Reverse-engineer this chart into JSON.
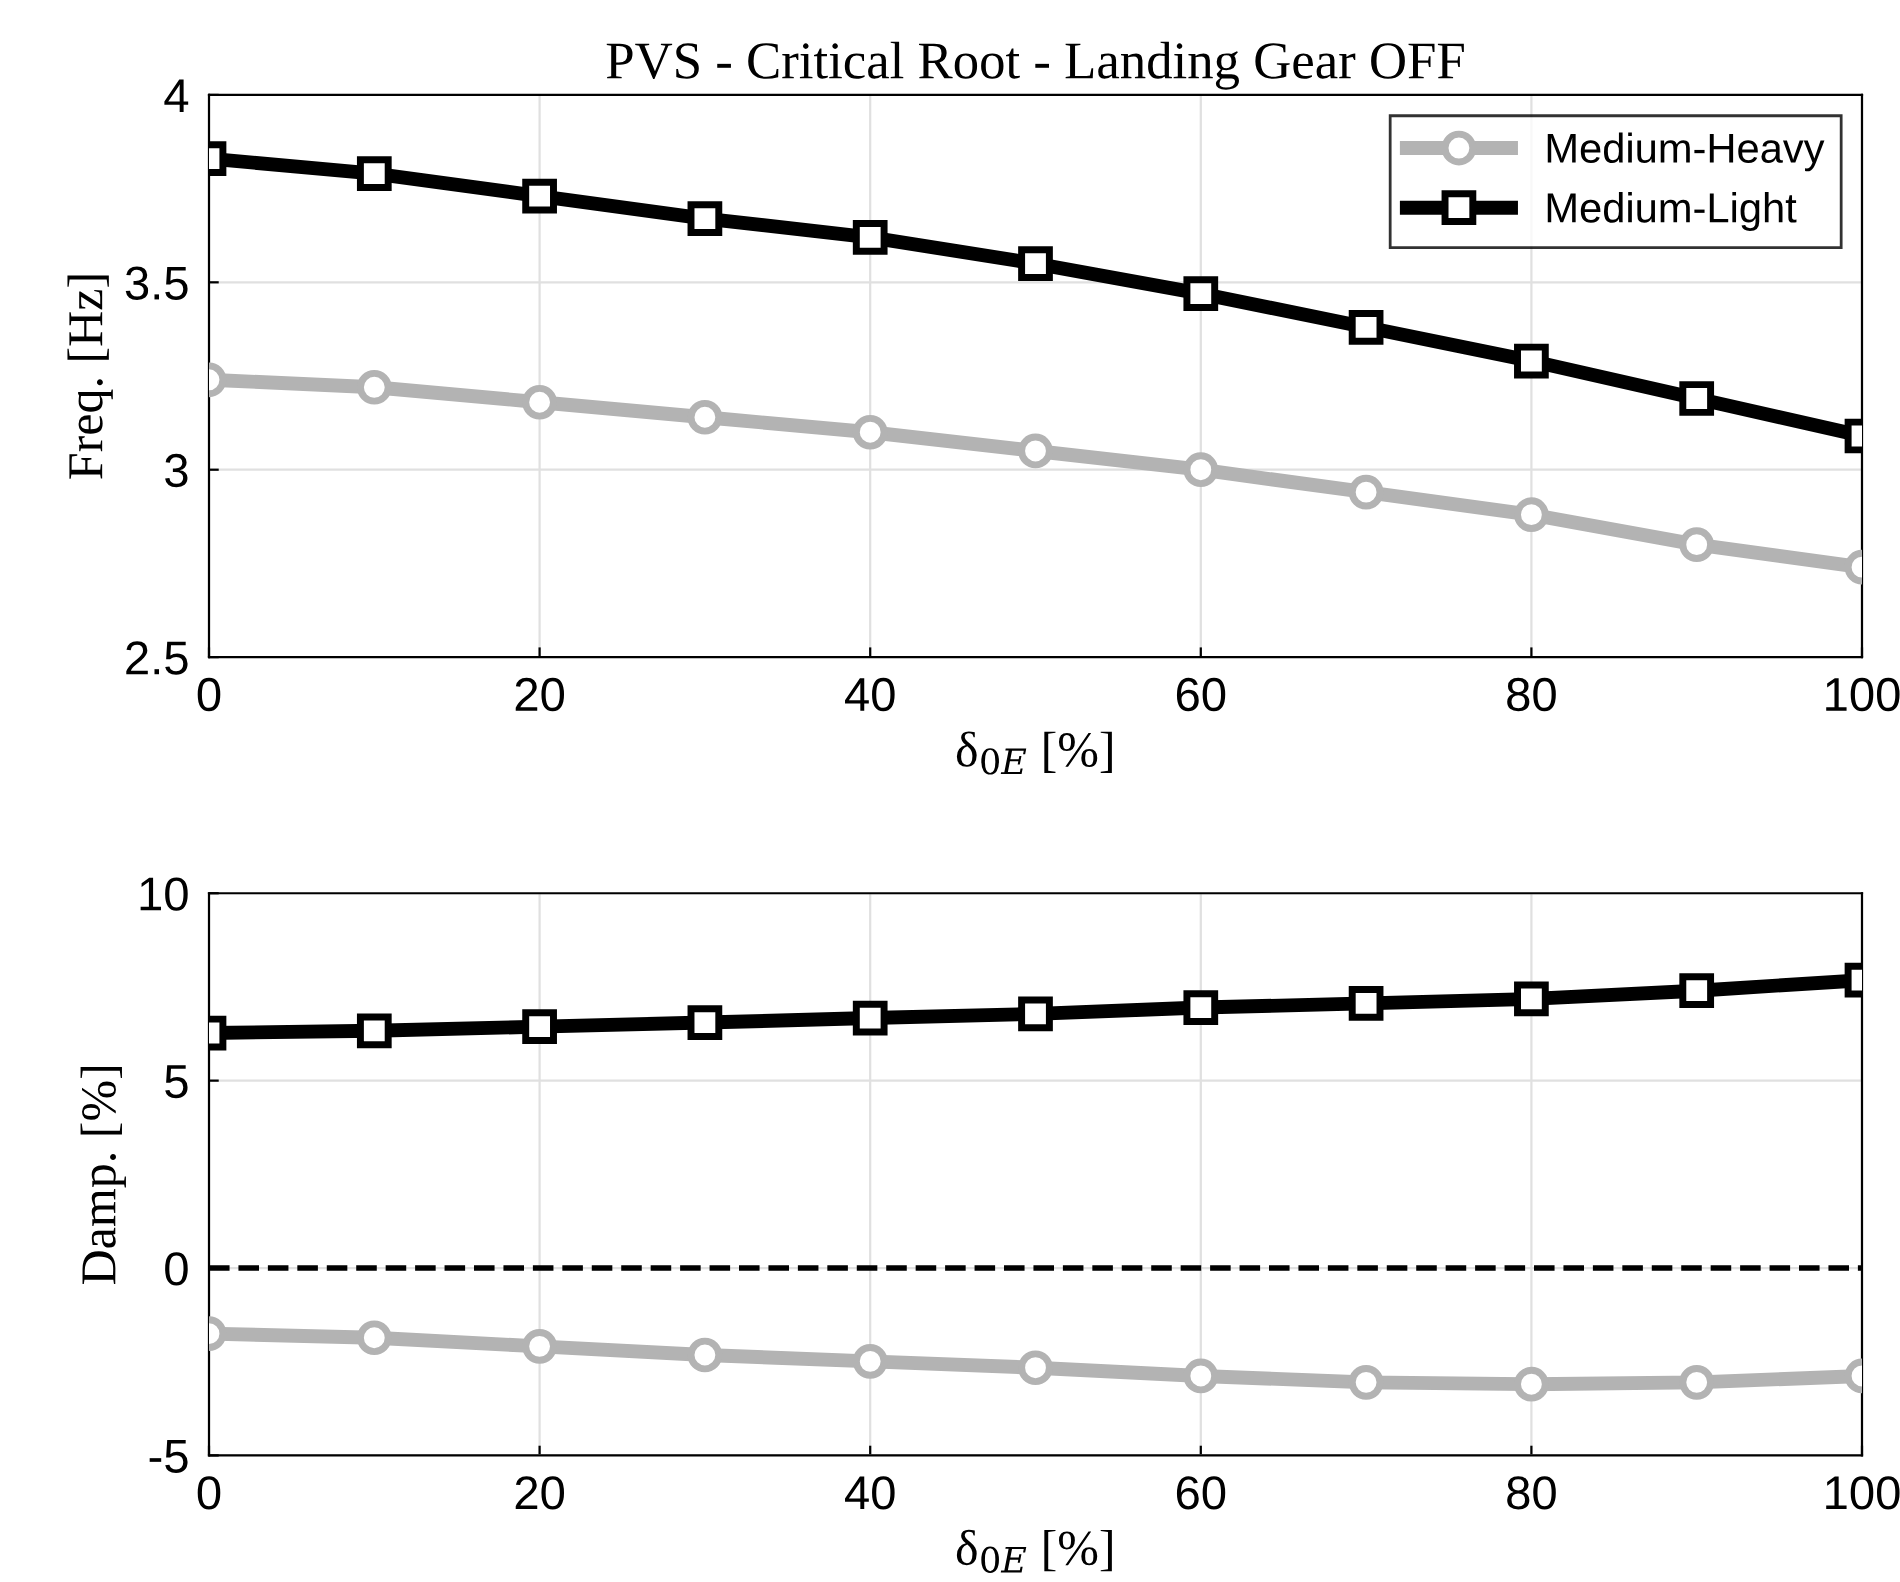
{
  "chart_data": [
    {
      "type": "line",
      "title": "PVS - Critical Root - Landing Gear OFF",
      "xlabel": "δ$_{0E}$ [%]",
      "ylabel": "Freq. [Hz]",
      "x": [
        0,
        10,
        20,
        30,
        40,
        50,
        60,
        70,
        80,
        90,
        100
      ],
      "xlim": [
        0,
        100
      ],
      "xticks": [
        0,
        20,
        40,
        60,
        80,
        100
      ],
      "ylim": [
        2.5,
        4
      ],
      "yticks": [
        2.5,
        3,
        3.5,
        4
      ],
      "grid": true,
      "legend": "top right",
      "series": [
        {
          "name": "Medium-Heavy",
          "color": "#b3b3b3",
          "marker": "circle",
          "values": [
            3.24,
            3.22,
            3.18,
            3.14,
            3.1,
            3.05,
            3.0,
            2.94,
            2.88,
            2.8,
            2.74
          ]
        },
        {
          "name": "Medium-Light",
          "color": "#000000",
          "marker": "square",
          "values": [
            3.83,
            3.79,
            3.73,
            3.67,
            3.62,
            3.55,
            3.47,
            3.38,
            3.29,
            3.19,
            3.09
          ]
        }
      ]
    },
    {
      "type": "line",
      "xlabel": "δ$_{0E}$ [%]",
      "ylabel": "Damp. [%]",
      "x": [
        0,
        10,
        20,
        30,
        40,
        50,
        60,
        70,
        80,
        90,
        100
      ],
      "xlim": [
        0,
        100
      ],
      "xticks": [
        0,
        20,
        40,
        60,
        80,
        100
      ],
      "ylim": [
        -5,
        10
      ],
      "yticks": [
        -5,
        0,
        5,
        10
      ],
      "grid": true,
      "ref_lines": [
        {
          "axis": "y",
          "value": 0,
          "color": "#000000",
          "line_style": "dashed"
        }
      ],
      "series": [
        {
          "color": "#b3b3b3",
          "marker": "circle",
          "values": [
            -1.75,
            -1.86,
            -2.09,
            -2.32,
            -2.49,
            -2.66,
            -2.88,
            -3.05,
            -3.1,
            -3.05,
            -2.88
          ]
        },
        {
          "color": "#000000",
          "marker": "square",
          "values": [
            6.27,
            6.33,
            6.44,
            6.55,
            6.67,
            6.78,
            6.95,
            7.06,
            7.18,
            7.4,
            7.68
          ]
        }
      ]
    }
  ]
}
